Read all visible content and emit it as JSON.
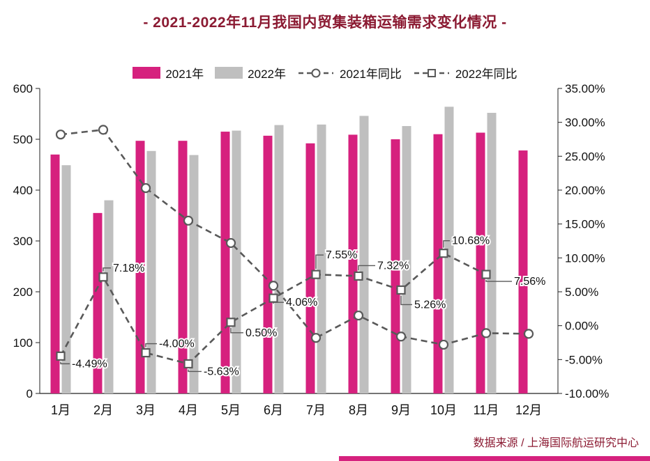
{
  "title": "- 2021-2022年11月我国内贸集装箱运输需求变化情况 -",
  "footer": {
    "source": "数据来源 / 上海国际航运研究中心"
  },
  "legend": {
    "items": [
      {
        "label": "2021年",
        "swatch": "magenta-bar"
      },
      {
        "label": "2022年",
        "swatch": "gray-bar"
      },
      {
        "label": "2021年同比",
        "swatch": "dashed-line-circle"
      },
      {
        "label": "2022年同比",
        "swatch": "dashed-line-square"
      }
    ]
  },
  "colors": {
    "bar_2021": "#d6217e",
    "bar_2022": "#bfbfbf",
    "line": "#595959",
    "title_text": "#8b1a32",
    "axis_text": "#111111"
  },
  "chart_data": {
    "type": "bar",
    "subtype": "bar-line-combo",
    "title": "- 2021-2022年11月我国内贸集装箱运输需求变化情况 -",
    "categories": [
      "1月",
      "2月",
      "3月",
      "4月",
      "5月",
      "6月",
      "7月",
      "8月",
      "9月",
      "10月",
      "11月",
      "12月"
    ],
    "series": [
      {
        "name": "2021年",
        "type": "bar",
        "axis": "left",
        "values": [
          470,
          355,
          497,
          497,
          515,
          507,
          492,
          509,
          500,
          510,
          513,
          478
        ]
      },
      {
        "name": "2022年",
        "type": "bar",
        "axis": "left",
        "values": [
          449,
          380,
          477,
          469,
          517,
          528,
          529,
          546,
          526,
          564,
          552,
          null
        ]
      },
      {
        "name": "2021年同比",
        "type": "line",
        "marker": "circle",
        "axis": "right",
        "values": [
          28.2,
          28.9,
          20.3,
          15.5,
          12.2,
          5.9,
          -1.8,
          1.5,
          -1.6,
          -2.8,
          -1.1,
          -1.2
        ]
      },
      {
        "name": "2022年同比",
        "type": "line",
        "marker": "square",
        "axis": "right",
        "values": [
          -4.49,
          7.18,
          -4.0,
          -5.63,
          0.5,
          4.06,
          7.55,
          7.32,
          5.26,
          10.68,
          7.56,
          null
        ],
        "labels": [
          "-4.49%",
          "7.18%",
          "-4.00%",
          "-5.63%",
          "0.50%",
          "4.06%",
          "7.55%",
          "7.32%",
          "5.26%",
          "10.68%",
          "7.56%",
          null
        ]
      }
    ],
    "left_axis": {
      "min": 0,
      "max": 600,
      "step": 100
    },
    "right_axis": {
      "min": -10,
      "max": 35,
      "step": 5,
      "tick_suffix": "%"
    },
    "grid": false,
    "legend_position": "top",
    "source": "数据来源 / 上海国际航运研究中心"
  }
}
